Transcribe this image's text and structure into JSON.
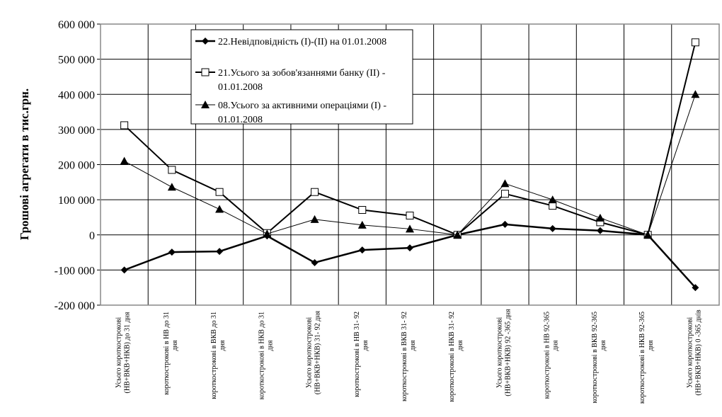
{
  "chart_data": {
    "type": "line",
    "ylabel": "Грошові агрегати в тис.грн.",
    "ylim": [
      -200000,
      600000
    ],
    "yticks": [
      -200000,
      -100000,
      0,
      100000,
      200000,
      300000,
      400000,
      500000,
      600000
    ],
    "ytick_labels": [
      "-200 000",
      "-100 000",
      "0",
      "100 000",
      "200 000",
      "300 000",
      "400 000",
      "500 000",
      "600 000"
    ],
    "grid": true,
    "legend_position": "top-center",
    "categories": [
      [
        "Усього короткострокові",
        "(НВ+ВКВ+НКВ) до 31 дня"
      ],
      [
        "короткострокові в НВ до 31",
        "дня"
      ],
      [
        "короткострокові в ВКВ до 31",
        "дня"
      ],
      [
        "короткострокові в НКВ до 31",
        "дня"
      ],
      [
        "Усього короткострокові",
        "(НВ+ВКВ+НКВ) 31- 92 дня"
      ],
      [
        "короткострокові в НВ  31- 92",
        "дня"
      ],
      [
        "короткострокові в ВКВ 31- 92",
        "дня"
      ],
      [
        "короткострокові в НКВ 31- 92",
        "дня"
      ],
      [
        "Усього короткострокові",
        "(НВ+ВКВ+НКВ) 92 -365 дня"
      ],
      [
        "короткострокові в НВ  92-365",
        "дня"
      ],
      [
        "короткострокові в ВКВ 92-365",
        "дня"
      ],
      [
        "короткострокові в НКВ 92-365",
        "дня"
      ],
      [
        "Усього короткострокові",
        "(НВ+ВКВ+НКВ) 0 -365 днів"
      ]
    ],
    "series": [
      {
        "name": "22.Невідповідність (I)-(II) на 01.01.2008",
        "legend_lines": [
          "22.Невідповідність (I)-(II) на 01.01.2008"
        ],
        "marker": "diamond",
        "width": 2.5,
        "values": [
          -100000,
          -49000,
          -47000,
          -3000,
          -79000,
          -43000,
          -37000,
          0,
          30000,
          18000,
          12000,
          0,
          -150000
        ]
      },
      {
        "name": "21.Усього за зобов'язаннями банку (II) - 01.01.2008",
        "legend_lines": [
          "21.Усього за зобов'язаннями банку (II) -",
          "01.01.2008"
        ],
        "marker": "square",
        "width": 2,
        "values": [
          312000,
          185000,
          122000,
          5000,
          122000,
          71000,
          55000,
          0,
          117000,
          83000,
          36000,
          0,
          548000
        ]
      },
      {
        "name": "08.Усього за активними операціями (I) - 01.01.2008",
        "legend_lines": [
          "08.Усього за активними операціями (I) -",
          "01.01.2008"
        ],
        "marker": "triangle",
        "width": 1,
        "values": [
          210000,
          136000,
          73000,
          3000,
          44000,
          28000,
          17000,
          0,
          146000,
          100000,
          48000,
          0,
          400000
        ]
      }
    ]
  }
}
